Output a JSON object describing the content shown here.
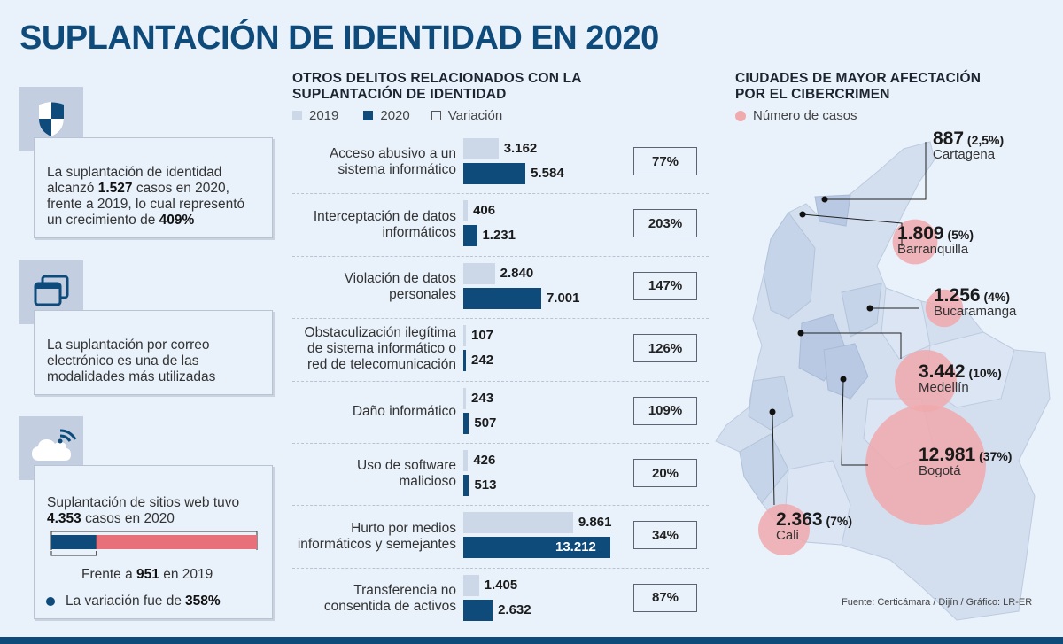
{
  "title": "SUPLANTACIÓN DE IDENTIDAD EN 2020",
  "left": {
    "card1": {
      "t1": "La suplantación de identidad alcanzó ",
      "b1": "1.527",
      "t2": " casos en 2020, frente a 2019, lo cual representó un crecimiento de ",
      "b2": "409%",
      "icon": "shield-icon"
    },
    "card2": {
      "text": "La suplantación por correo electrónico es una de las modalidades más utilizadas",
      "icon": "windows-icon"
    },
    "card3": {
      "t1": "Suplantación de sitios web tuvo ",
      "b1": "4.353",
      "t2": " casos en 2020",
      "icon": "cloud-wifi-icon",
      "cmp_t1": "Frente a ",
      "cmp_b": "951",
      "cmp_t2": " en 2019",
      "var_t": "La variación fue de ",
      "var_b": "358%",
      "value_2020": 4353,
      "value_2019": 951,
      "colors": {
        "total": "#e8707a",
        "part": "#0e4a7a"
      }
    }
  },
  "middle": {
    "title_l1": "OTROS DELITOS RELACIONADOS CON LA",
    "title_l2": "SUPLANTACIÓN DE IDENTIDAD",
    "legend": {
      "y2019": "2019",
      "y2020": "2020",
      "variation": "Variación"
    }
  },
  "chart_data": {
    "type": "bar",
    "orientation": "horizontal",
    "grouped": true,
    "categories": [
      [
        "Acceso abusivo a un",
        "sistema informático"
      ],
      [
        "Interceptación de datos",
        "informáticos"
      ],
      [
        "Violación de datos",
        "personales"
      ],
      [
        "Obstaculización ilegítima",
        "de sistema informático o",
        "red de telecomunicación"
      ],
      [
        "Daño informático"
      ],
      [
        "Uso de software",
        "malicioso"
      ],
      [
        "Hurto por medios",
        "informáticos y semejantes"
      ],
      [
        "Transferencia no",
        "consentida de activos"
      ]
    ],
    "series": [
      {
        "name": "2019",
        "values": [
          3162,
          406,
          2840,
          107,
          243,
          426,
          9861,
          1405
        ],
        "labels": [
          "3.162",
          "406",
          "2.840",
          "107",
          "243",
          "426",
          "9.861",
          "1.405"
        ],
        "color": "#ccd7e7"
      },
      {
        "name": "2020",
        "values": [
          5584,
          1231,
          7001,
          242,
          507,
          513,
          13212,
          2632
        ],
        "labels": [
          "5.584",
          "1.231",
          "7.001",
          "242",
          "507",
          "513",
          "13.212",
          "2.632"
        ],
        "color": "#0e4a7a"
      }
    ],
    "variation": [
      "77%",
      "203%",
      "147%",
      "126%",
      "109%",
      "20%",
      "34%",
      "87%"
    ],
    "xlim": [
      0,
      13212
    ]
  },
  "map": {
    "title_l1": "CIUDADES DE MAYOR AFECTACIÓN",
    "title_l2": "POR EL CIBERCRIMEN",
    "legend": "Número de casos",
    "bubble_color": "#f0a9ad",
    "cities": [
      {
        "name": "Cartagena",
        "num": "887",
        "pct": "(2,5%)",
        "value": 887
      },
      {
        "name": "Barranquilla",
        "num": "1.809",
        "pct": "(5%)",
        "value": 1809
      },
      {
        "name": "Bucaramanga",
        "num": "1.256",
        "pct": "(4%)",
        "value": 1256
      },
      {
        "name": "Medellín",
        "num": "3.442",
        "pct": "(10%)",
        "value": 3442
      },
      {
        "name": "Bogotá",
        "num": "12.981",
        "pct": "(37%)",
        "value": 12981
      },
      {
        "name": "Cali",
        "num": "2.363",
        "pct": "(7%)",
        "value": 2363
      }
    ],
    "source": "Fuente: Certicámara / Dijín / Gráfico: LR-ER"
  }
}
